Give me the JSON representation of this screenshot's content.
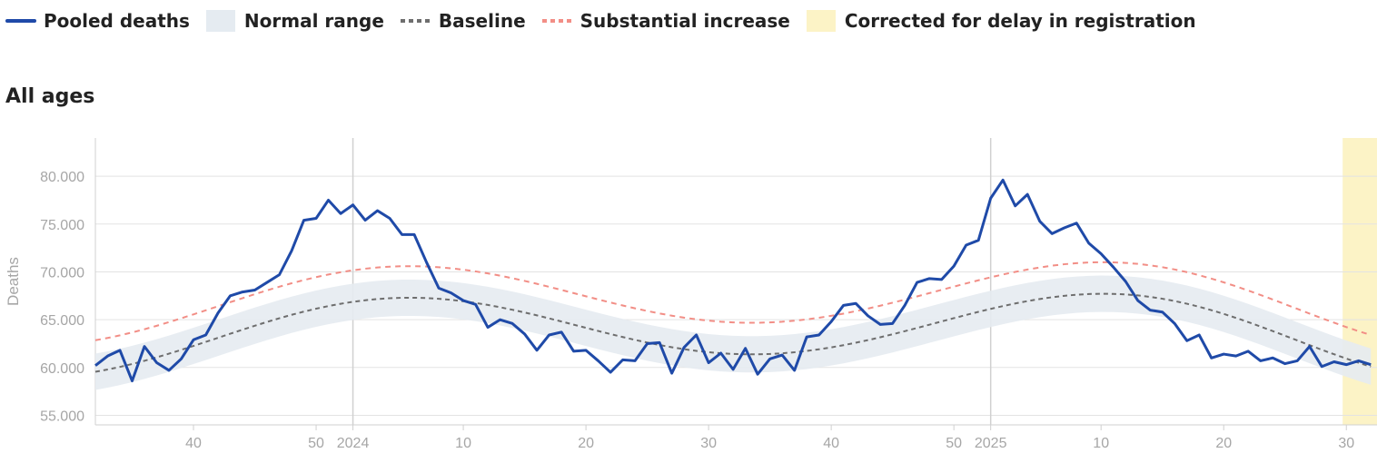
{
  "legend": {
    "items": [
      {
        "label": "Pooled deaths",
        "kind": "line",
        "color": "#1f4aa8"
      },
      {
        "label": "Normal range",
        "kind": "box",
        "color": "#e5ebf1"
      },
      {
        "label": "Baseline",
        "kind": "dash",
        "color": "#6e6e6e"
      },
      {
        "label": "Substantial increase",
        "kind": "dash",
        "color": "#f28e86"
      },
      {
        "label": "Corrected for delay in registration",
        "kind": "box",
        "color": "#fcf3c6"
      }
    ]
  },
  "panel": {
    "title": "All ages"
  },
  "chart_data": {
    "type": "line",
    "title": "All ages",
    "ylabel": "Deaths",
    "ylim": [
      54000,
      84000
    ],
    "yticks": [
      55000,
      60000,
      65000,
      70000,
      75000,
      80000
    ],
    "ytick_labels": [
      "55.000",
      "60.000",
      "65.000",
      "70.000",
      "75.000",
      "80.000"
    ],
    "x_unit": "week index (week 32 of 2023 = 0)",
    "xlim": [
      0,
      104.5
    ],
    "xticks": [
      {
        "x": 8,
        "label": "40"
      },
      {
        "x": 18,
        "label": "50"
      },
      {
        "x": 21,
        "label": "2024",
        "year": true
      },
      {
        "x": 30,
        "label": "10"
      },
      {
        "x": 40,
        "label": "20"
      },
      {
        "x": 50,
        "label": "30"
      },
      {
        "x": 60,
        "label": "40"
      },
      {
        "x": 70,
        "label": "50"
      },
      {
        "x": 73,
        "label": "2025",
        "year": true
      },
      {
        "x": 82,
        "label": "10"
      },
      {
        "x": 92,
        "label": "20"
      },
      {
        "x": 102,
        "label": "30"
      }
    ],
    "grid": true,
    "delay_corrected_from": 101.7,
    "colors": {
      "pooled": "#1f4aa8",
      "normal_range": "#e5ebf1",
      "baseline": "#6e6e6e",
      "substantial_increase": "#f28e86",
      "delay": "#fcf3c6"
    },
    "series": [
      {
        "name": "Pooled deaths",
        "values": [
          60200,
          61200,
          61800,
          58600,
          62200,
          60500,
          59700,
          60900,
          62900,
          63400,
          65700,
          67500,
          67900,
          68100,
          68900,
          69700,
          72200,
          75400,
          75600,
          77500,
          76100,
          77000,
          75400,
          76400,
          75600,
          73900,
          73900,
          71000,
          68300,
          67800,
          67000,
          66600,
          64200,
          65000,
          64600,
          63500,
          61800,
          63400,
          63700,
          61700,
          61800,
          60700,
          59500,
          60800,
          60700,
          62500,
          62600,
          59400,
          62100,
          63400,
          60500,
          61500,
          59800,
          62000,
          59300,
          60900,
          61300,
          59700,
          63200,
          63400,
          64800,
          66500,
          66700,
          65400,
          64500,
          64600,
          66500,
          68900,
          69300,
          69200,
          70600,
          72800,
          73300,
          77700,
          79600,
          76900,
          78100,
          75300,
          74000,
          74600,
          75100,
          73000,
          71900,
          70500,
          69000,
          67000,
          66000,
          65800,
          64600,
          62800,
          63400,
          61000,
          61400,
          61200,
          61700,
          60700,
          61000,
          60400,
          60700,
          62200,
          60100,
          60600,
          60300,
          60700,
          60300
        ]
      },
      {
        "name": "Baseline",
        "values": [
          59550,
          59787,
          60060,
          60366,
          60701,
          61062,
          61444,
          61844,
          62257,
          62678,
          63104,
          63531,
          63953,
          64366,
          64766,
          65148,
          65509,
          65844,
          66150,
          66424,
          66664,
          66868,
          67033,
          67159,
          67245,
          67290,
          67295,
          67260,
          67186,
          67075,
          66929,
          66749,
          66539,
          66301,
          66038,
          65754,
          65452,
          65136,
          64811,
          64480,
          64148,
          63818,
          63496,
          63184,
          62887,
          62608,
          62351,
          62119,
          61914,
          61740,
          61598,
          61489,
          61416,
          61378,
          61378,
          61414,
          61486,
          61592,
          61732,
          61904,
          62105,
          62334,
          62589,
          62866,
          63162,
          63474,
          63799,
          64134,
          64475,
          64817,
          65158,
          65494,
          65819,
          66131,
          66425,
          66697,
          66944,
          67162,
          67347,
          67498,
          67610,
          67682,
          67712,
          67698,
          67640,
          67535,
          67385,
          67190,
          66951,
          66670,
          66350,
          65994,
          65605,
          65188,
          64746,
          64285,
          63808,
          63321,
          62830,
          62339,
          61855,
          61383,
          60928,
          60496,
          60092
        ]
      },
      {
        "name": "Substantial increase",
        "values": [
          62850,
          63087,
          63360,
          63666,
          64001,
          64362,
          64744,
          65144,
          65557,
          65978,
          66404,
          66831,
          67253,
          67666,
          68066,
          68448,
          68809,
          69144,
          69450,
          69724,
          69964,
          70168,
          70333,
          70459,
          70545,
          70590,
          70595,
          70560,
          70486,
          70375,
          70229,
          70049,
          69839,
          69601,
          69338,
          69054,
          68752,
          68436,
          68111,
          67780,
          67448,
          67118,
          66796,
          66484,
          66187,
          65908,
          65651,
          65419,
          65214,
          65040,
          64898,
          64789,
          64716,
          64678,
          64678,
          64714,
          64786,
          64892,
          65032,
          65204,
          65405,
          65634,
          65889,
          66166,
          66462,
          66774,
          67099,
          67434,
          67775,
          68117,
          68458,
          68794,
          69119,
          69431,
          69725,
          69997,
          70244,
          70462,
          70647,
          70798,
          70910,
          70982,
          71012,
          70998,
          70940,
          70835,
          70685,
          70490,
          70251,
          69970,
          69650,
          69294,
          68905,
          68488,
          68046,
          67585,
          67108,
          66621,
          66130,
          65639,
          65155,
          64683,
          64228,
          63796,
          63392
        ]
      },
      {
        "name": "Normal range",
        "band_halfwidth": 1900,
        "note": "drawn around baseline"
      }
    ]
  }
}
